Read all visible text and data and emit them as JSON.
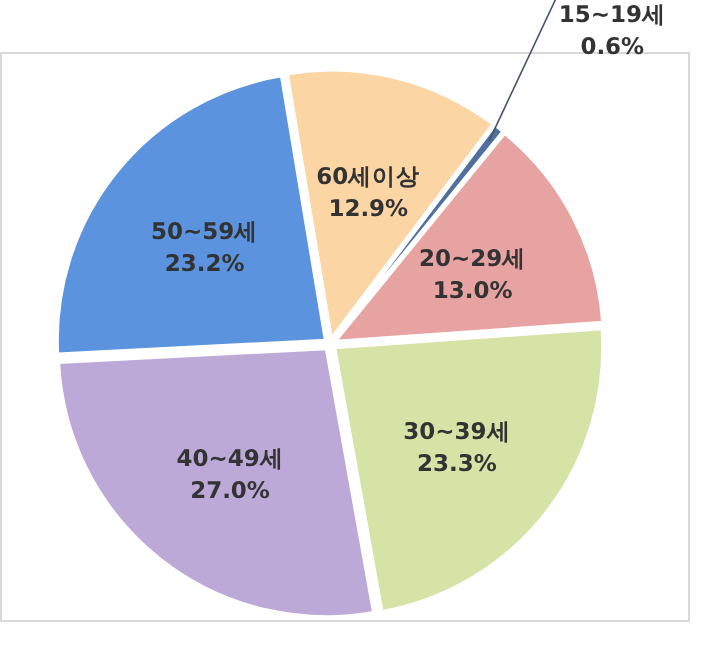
{
  "chart_data": {
    "type": "pie",
    "categories": [
      "15~19세",
      "20~29세",
      "30~39세",
      "40~49세",
      "50~59세",
      "60세이상"
    ],
    "values": [
      0.6,
      13.0,
      23.3,
      27.0,
      23.2,
      12.9
    ],
    "value_labels": [
      "0.6%",
      "13.0%",
      "23.3%",
      "27.0%",
      "23.2%",
      "12.9%"
    ],
    "colors": [
      "#4f6f9f",
      "#e6a3a1",
      "#d5e4a6",
      "#bca9d8",
      "#5b93de",
      "#fbd5a3"
    ]
  }
}
